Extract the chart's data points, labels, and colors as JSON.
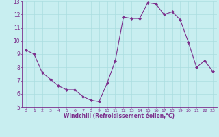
{
  "x": [
    0,
    1,
    2,
    3,
    4,
    5,
    6,
    7,
    8,
    9,
    10,
    11,
    12,
    13,
    14,
    15,
    16,
    17,
    18,
    19,
    20,
    21,
    22,
    23
  ],
  "y": [
    9.3,
    9.0,
    7.6,
    7.1,
    6.6,
    6.3,
    6.3,
    5.8,
    5.5,
    5.4,
    6.8,
    8.5,
    11.8,
    11.7,
    11.7,
    12.9,
    12.8,
    12.0,
    12.2,
    11.6,
    9.9,
    8.0,
    8.5,
    7.7
  ],
  "xlabel": "Windchill (Refroidissement éolien,°C)",
  "ylim": [
    5,
    13
  ],
  "xlim_min": -0.5,
  "xlim_max": 23.5,
  "yticks": [
    5,
    6,
    7,
    8,
    9,
    10,
    11,
    12,
    13
  ],
  "xticks": [
    0,
    1,
    2,
    3,
    4,
    5,
    6,
    7,
    8,
    9,
    10,
    11,
    12,
    13,
    14,
    15,
    16,
    17,
    18,
    19,
    20,
    21,
    22,
    23
  ],
  "line_color": "#7B2D8B",
  "marker_color": "#7B2D8B",
  "bg_color": "#C8EEF0",
  "grid_color": "#AADDE0",
  "axis_label_color": "#7B2D8B",
  "tick_label_color": "#7B2D8B",
  "tick_color": "#7B2D8B",
  "xlabel_fontsize": 5.5,
  "tick_fontsize_x": 4.5,
  "tick_fontsize_y": 5.5
}
